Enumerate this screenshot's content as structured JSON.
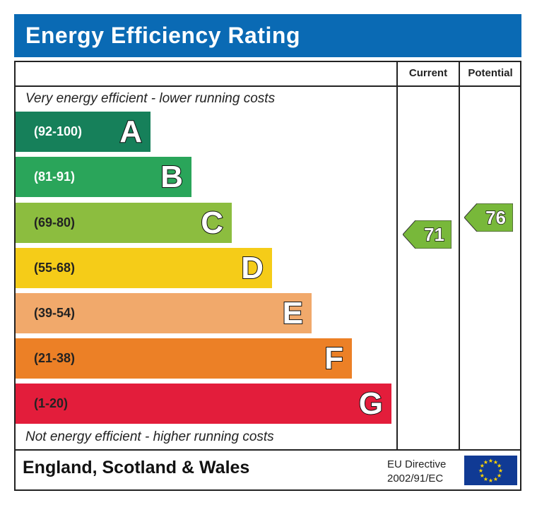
{
  "title": "Energy Efficiency Rating",
  "columns": {
    "current": "Current",
    "potential": "Potential"
  },
  "top_caption": "Very energy efficient - lower running costs",
  "bottom_caption": "Not energy efficient - higher running costs",
  "footer": {
    "region": "England, Scotland & Wales",
    "directive_line1": "EU Directive",
    "directive_line2": "2002/91/EC",
    "flag_icon": "eu-flag-icon"
  },
  "colors": {
    "title_bar": "#0a6ab4",
    "arrow": "#78b83a"
  },
  "chart_data": {
    "type": "bar",
    "categories": [
      "A",
      "B",
      "C",
      "D",
      "E",
      "F",
      "G"
    ],
    "bands": [
      {
        "letter": "A",
        "range": "(92-100)",
        "min": 92,
        "max": 100,
        "color": "#16805a",
        "text_color": "#ffffff"
      },
      {
        "letter": "B",
        "range": "(81-91)",
        "min": 81,
        "max": 91,
        "color": "#2aa55a",
        "text_color": "#ffffff"
      },
      {
        "letter": "C",
        "range": "(69-80)",
        "min": 69,
        "max": 80,
        "color": "#8cbd3f",
        "text_color": "#222222"
      },
      {
        "letter": "D",
        "range": "(55-68)",
        "min": 55,
        "max": 68,
        "color": "#f5cc18",
        "text_color": "#222222"
      },
      {
        "letter": "E",
        "range": "(39-54)",
        "min": 39,
        "max": 54,
        "color": "#f1a96b",
        "text_color": "#222222"
      },
      {
        "letter": "F",
        "range": "(21-38)",
        "min": 21,
        "max": 38,
        "color": "#ec8026",
        "text_color": "#222222"
      },
      {
        "letter": "G",
        "range": "(1-20)",
        "min": 1,
        "max": 20,
        "color": "#e31d3b",
        "text_color": "#222222"
      }
    ],
    "current": {
      "value": 71,
      "label": "71",
      "band": "C"
    },
    "potential": {
      "value": 76,
      "label": "76",
      "band": "C"
    }
  }
}
